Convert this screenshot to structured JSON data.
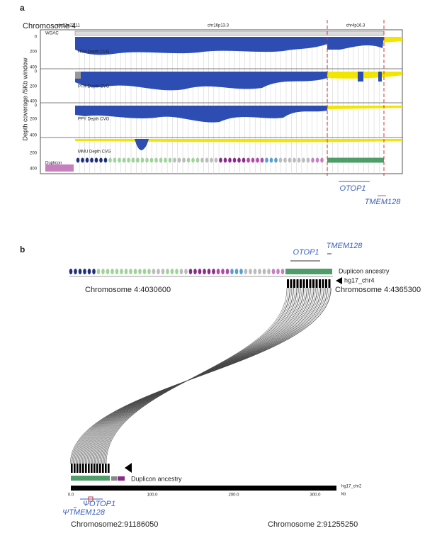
{
  "panel_a": {
    "label": "a",
    "title": "Chromosome 4",
    "bands": [
      "chr21q22.11",
      "chr16p13.3",
      "chr4p16.3"
    ],
    "y_axis_label": "Depth coverage /5Kb window",
    "wgac_label": "WGAC",
    "tracks": [
      {
        "label": "HSA Depth CVG",
        "ticks": [
          "0",
          "200",
          "400"
        ]
      },
      {
        "label": "PTR Depth CVG",
        "ticks": [
          "0",
          "200",
          "400"
        ]
      },
      {
        "label": "PPY Depth CVG",
        "ticks": [
          "0",
          "200",
          "400"
        ]
      },
      {
        "label": "MMU Depth CVG",
        "ticks": [
          "200"
        ]
      },
      {
        "label": "Duplicon",
        "ticks": [
          "400"
        ]
      }
    ],
    "genes": [
      "OTOP1",
      "TMEM128"
    ]
  },
  "panel_b": {
    "label": "b",
    "top": {
      "genes": [
        "OTOP1",
        "TMEM128"
      ],
      "track_label": "Duplicon ancestry",
      "chrom_label": "hg17_chr4",
      "start": "Chromosome 4:4030600",
      "end": "Chromosome 4:4365300"
    },
    "bottom": {
      "track_label": "Duplicon ancestry",
      "chrom_label": "hg17_chr2",
      "unit": "kb",
      "scale_ticks": [
        "0.0",
        "100.0",
        "200.0",
        "300.0"
      ],
      "genes": [
        "ΨOTOP1",
        "ΨTMEM128"
      ],
      "start": "Chromosome2:91186050",
      "end": "Chromosome 2:91255250"
    }
  }
}
